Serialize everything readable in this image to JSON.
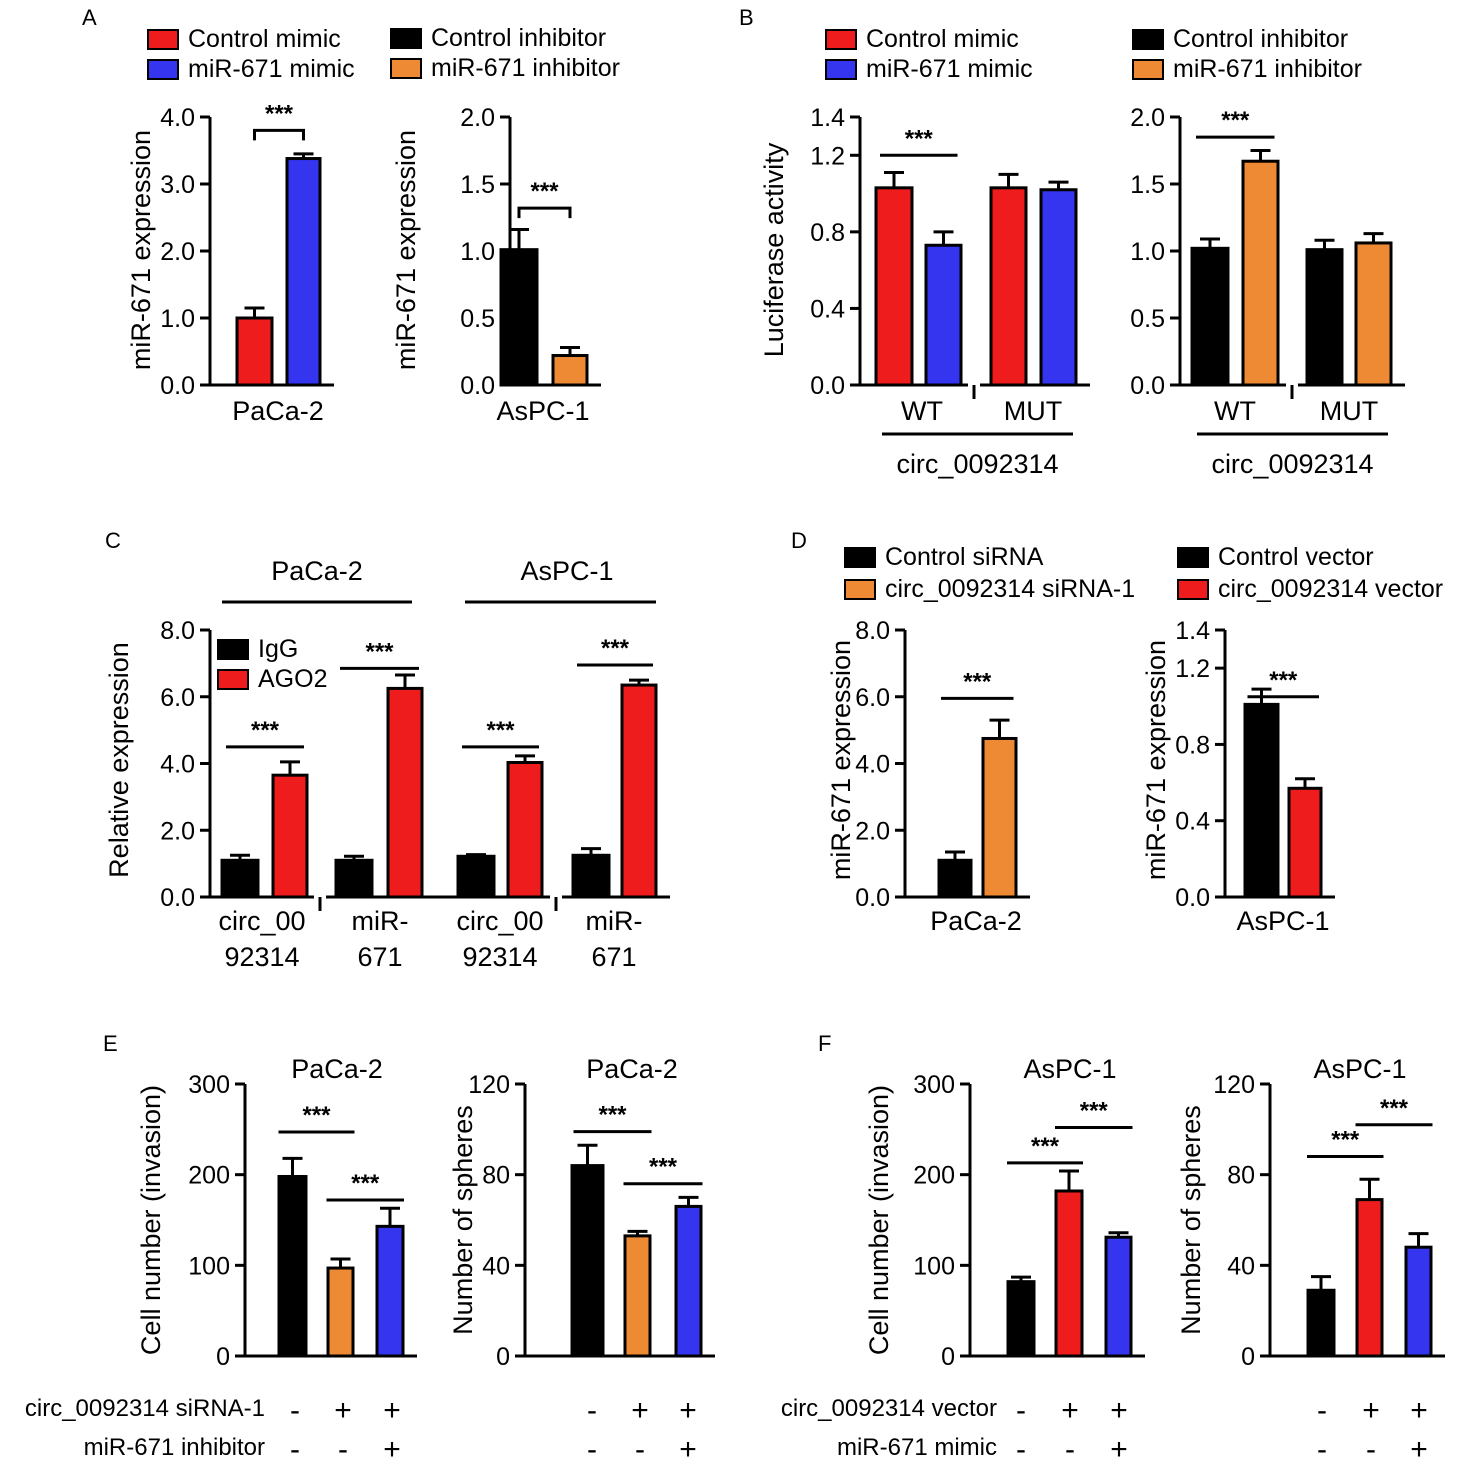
{
  "colors": {
    "black": "#000000",
    "red": "#ee1c1c",
    "blue": "#3535f0",
    "orange": "#ee8a33"
  },
  "chart_data": [
    {
      "panel": "A",
      "type": "bar",
      "title": "",
      "xlabel": "PaCa-2",
      "ylabel": "miR-671 expression",
      "ylim": [
        0,
        4
      ],
      "yticks": [
        "0.0",
        "1.0",
        "2.0",
        "3.0",
        "4.0"
      ],
      "legend": [
        {
          "label": "Control mimic",
          "color": "red"
        },
        {
          "label": "miR-671 mimic",
          "color": "blue"
        }
      ],
      "bars": [
        {
          "label": "Control mimic",
          "value": 1.0,
          "err": 0.15,
          "color": "red"
        },
        {
          "label": "miR-671 mimic",
          "value": 3.38,
          "err": 0.07,
          "color": "blue"
        }
      ],
      "sig": [
        {
          "from": 0,
          "to": 1,
          "label": "***",
          "level": 3.8
        }
      ]
    },
    {
      "panel": "A",
      "type": "bar",
      "title": "",
      "xlabel": "AsPC-1",
      "ylabel": "miR-671 expression",
      "ylim": [
        0,
        2
      ],
      "yticks": [
        "0.0",
        "0.5",
        "1.0",
        "1.5",
        "2.0"
      ],
      "legend": [
        {
          "label": "Control inhibitor",
          "color": "black"
        },
        {
          "label": "miR-671 inhibitor",
          "color": "orange"
        }
      ],
      "bars": [
        {
          "label": "Control inhibitor",
          "value": 1.01,
          "err": 0.15,
          "color": "black"
        },
        {
          "label": "miR-671 inhibitor",
          "value": 0.22,
          "err": 0.06,
          "color": "orange"
        }
      ],
      "sig": [
        {
          "from": 0,
          "to": 1,
          "label": "***",
          "level": 1.32
        }
      ]
    },
    {
      "panel": "B",
      "type": "bar",
      "title": "",
      "xlabel": "circ_0092314",
      "ylabel": "Luciferase activity",
      "ylim": [
        0,
        1.4
      ],
      "yticks": [
        "0.0",
        "0.4",
        "0.8",
        "1.2",
        "1.4"
      ],
      "legend": [
        {
          "label": "Control mimic",
          "color": "red"
        },
        {
          "label": "miR-671 mimic",
          "color": "blue"
        }
      ],
      "groups": [
        "WT",
        "MUT"
      ],
      "bars": [
        {
          "group": "WT",
          "value": 1.03,
          "err": 0.08,
          "color": "red"
        },
        {
          "group": "WT",
          "value": 0.73,
          "err": 0.07,
          "color": "blue"
        },
        {
          "group": "MUT",
          "value": 1.03,
          "err": 0.07,
          "color": "red"
        },
        {
          "group": "MUT",
          "value": 1.02,
          "err": 0.04,
          "color": "blue"
        }
      ],
      "sig": [
        {
          "from": 0,
          "to": 1,
          "label": "***",
          "level": 1.2
        }
      ]
    },
    {
      "panel": "B",
      "type": "bar",
      "title": "",
      "xlabel": "circ_0092314",
      "ylabel": "",
      "ylim": [
        0,
        2
      ],
      "yticks": [
        "0.0",
        "0.5",
        "1.0",
        "1.5",
        "2.0"
      ],
      "legend": [
        {
          "label": "Control inhibitor",
          "color": "black"
        },
        {
          "label": "miR-671 inhibitor",
          "color": "orange"
        }
      ],
      "groups": [
        "WT",
        "MUT"
      ],
      "bars": [
        {
          "group": "WT",
          "value": 1.02,
          "err": 0.07,
          "color": "black"
        },
        {
          "group": "WT",
          "value": 1.67,
          "err": 0.08,
          "color": "orange"
        },
        {
          "group": "MUT",
          "value": 1.01,
          "err": 0.07,
          "color": "black"
        },
        {
          "group": "MUT",
          "value": 1.06,
          "err": 0.07,
          "color": "orange"
        }
      ],
      "sig": [
        {
          "from": 0,
          "to": 1,
          "label": "***",
          "level": 1.85
        }
      ]
    },
    {
      "panel": "C",
      "type": "bar",
      "title": "",
      "xlabel": "",
      "ylabel": "Relative expression",
      "ylim": [
        0,
        8
      ],
      "yticks": [
        "0.0",
        "2.0",
        "4.0",
        "6.0",
        "8.0"
      ],
      "legend": [
        {
          "label": "IgG",
          "color": "black"
        },
        {
          "label": "AGO2",
          "color": "red"
        }
      ],
      "cell_lines": [
        "PaCa-2",
        "AsPC-1"
      ],
      "groups": [
        [
          "circ_00",
          "92314"
        ],
        [
          "miR-",
          "671"
        ],
        [
          "circ_00",
          "92314"
        ],
        [
          "miR-",
          "671"
        ]
      ],
      "bars": [
        {
          "value": 1.1,
          "err": 0.15,
          "color": "black"
        },
        {
          "value": 3.65,
          "err": 0.4,
          "color": "red"
        },
        {
          "value": 1.1,
          "err": 0.12,
          "color": "black"
        },
        {
          "value": 6.25,
          "err": 0.4,
          "color": "red"
        },
        {
          "value": 1.22,
          "err": 0.05,
          "color": "black"
        },
        {
          "value": 4.03,
          "err": 0.2,
          "color": "red"
        },
        {
          "value": 1.25,
          "err": 0.2,
          "color": "black"
        },
        {
          "value": 6.35,
          "err": 0.15,
          "color": "red"
        }
      ],
      "sig": [
        {
          "from": 0,
          "to": 1,
          "label": "***",
          "level": 4.5
        },
        {
          "from": 2,
          "to": 3,
          "label": "***",
          "level": 6.85
        },
        {
          "from": 4,
          "to": 5,
          "label": "***",
          "level": 4.5
        },
        {
          "from": 6,
          "to": 7,
          "label": "***",
          "level": 6.95
        }
      ]
    },
    {
      "panel": "D",
      "type": "bar",
      "title": "",
      "xlabel": "PaCa-2",
      "ylabel": "miR-671 expression",
      "ylim": [
        0,
        8
      ],
      "yticks": [
        "0.0",
        "2.0",
        "4.0",
        "6.0",
        "8.0"
      ],
      "legend": [
        {
          "label": "Control siRNA",
          "color": "black"
        },
        {
          "label": "circ_0092314 siRNA-1",
          "color": "orange"
        }
      ],
      "bars": [
        {
          "value": 1.1,
          "err": 0.25,
          "color": "black"
        },
        {
          "value": 4.75,
          "err": 0.55,
          "color": "orange"
        }
      ],
      "sig": [
        {
          "from": 0,
          "to": 1,
          "label": "***",
          "level": 5.95
        }
      ]
    },
    {
      "panel": "D",
      "type": "bar",
      "title": "",
      "xlabel": "AsPC-1",
      "ylabel": "miR-671 expression",
      "ylim": [
        0,
        1.4
      ],
      "yticks": [
        "0.0",
        "0.4",
        "0.8",
        "1.2",
        "1.4"
      ],
      "legend": [
        {
          "label": "Control vector",
          "color": "black"
        },
        {
          "label": "circ_0092314 vector",
          "color": "red"
        }
      ],
      "bars": [
        {
          "value": 1.01,
          "err": 0.08,
          "color": "black"
        },
        {
          "value": 0.57,
          "err": 0.05,
          "color": "red"
        }
      ],
      "sig": [
        {
          "from": 0,
          "to": 1,
          "label": "***",
          "level": 1.05
        }
      ]
    },
    {
      "panel": "E",
      "type": "bar",
      "title": "PaCa-2",
      "xlabel": "",
      "ylabel": "Cell number (invasion)",
      "ylim": [
        0,
        300
      ],
      "yticks": [
        "0",
        "100",
        "200",
        "300"
      ],
      "bars": [
        {
          "value": 198,
          "err": 20,
          "color": "black"
        },
        {
          "value": 97,
          "err": 10,
          "color": "orange"
        },
        {
          "value": 143,
          "err": 20,
          "color": "blue"
        }
      ],
      "sig": [
        {
          "from": 0,
          "to": 1,
          "label": "***",
          "level": 247
        },
        {
          "from": 1,
          "to": 2,
          "label": "***",
          "level": 172
        }
      ]
    },
    {
      "panel": "E",
      "type": "bar",
      "title": "PaCa-2",
      "xlabel": "",
      "ylabel": "Number of spheres",
      "ylim": [
        0,
        120
      ],
      "yticks": [
        "0",
        "40",
        "80",
        "120"
      ],
      "bars": [
        {
          "value": 84,
          "err": 9,
          "color": "black"
        },
        {
          "value": 53,
          "err": 2,
          "color": "orange"
        },
        {
          "value": 66,
          "err": 4,
          "color": "blue"
        }
      ],
      "sig": [
        {
          "from": 0,
          "to": 1,
          "label": "***",
          "level": 99
        },
        {
          "from": 1,
          "to": 2,
          "label": "***",
          "level": 76
        }
      ]
    },
    {
      "panel": "F",
      "type": "bar",
      "title": "AsPC-1",
      "xlabel": "",
      "ylabel": "Cell number (invasion)",
      "ylim": [
        0,
        300
      ],
      "yticks": [
        "0",
        "100",
        "200",
        "300"
      ],
      "bars": [
        {
          "value": 82,
          "err": 5,
          "color": "black"
        },
        {
          "value": 182,
          "err": 22,
          "color": "red"
        },
        {
          "value": 131,
          "err": 5,
          "color": "blue"
        }
      ],
      "sig": [
        {
          "from": 0,
          "to": 1,
          "label": "***",
          "level": 213
        },
        {
          "from": 1,
          "to": 2,
          "label": "***",
          "level": 252
        }
      ]
    },
    {
      "panel": "F",
      "type": "bar",
      "title": "AsPC-1",
      "xlabel": "",
      "ylabel": "Number of spheres",
      "ylim": [
        0,
        120
      ],
      "yticks": [
        "0",
        "40",
        "80",
        "120"
      ],
      "bars": [
        {
          "value": 29,
          "err": 6,
          "color": "black"
        },
        {
          "value": 69,
          "err": 9,
          "color": "red"
        },
        {
          "value": 48,
          "err": 6,
          "color": "blue"
        }
      ],
      "sig": [
        {
          "from": 0,
          "to": 1,
          "label": "***",
          "level": 88
        },
        {
          "from": 1,
          "to": 2,
          "label": "***",
          "level": 102
        }
      ]
    }
  ],
  "panel_labels": [
    "A",
    "B",
    "C",
    "D",
    "E",
    "F"
  ],
  "treatments": {
    "E": [
      {
        "label": "circ_0092314 siRNA-1",
        "signs": [
          "-",
          "+",
          "+"
        ]
      },
      {
        "label": "miR-671 inhibitor",
        "signs": [
          "-",
          "-",
          "+"
        ]
      }
    ],
    "F": [
      {
        "label": "circ_0092314 vector",
        "signs": [
          "-",
          "+",
          "+"
        ]
      },
      {
        "label": "miR-671 mimic",
        "signs": [
          "-",
          "-",
          "+"
        ]
      }
    ]
  }
}
